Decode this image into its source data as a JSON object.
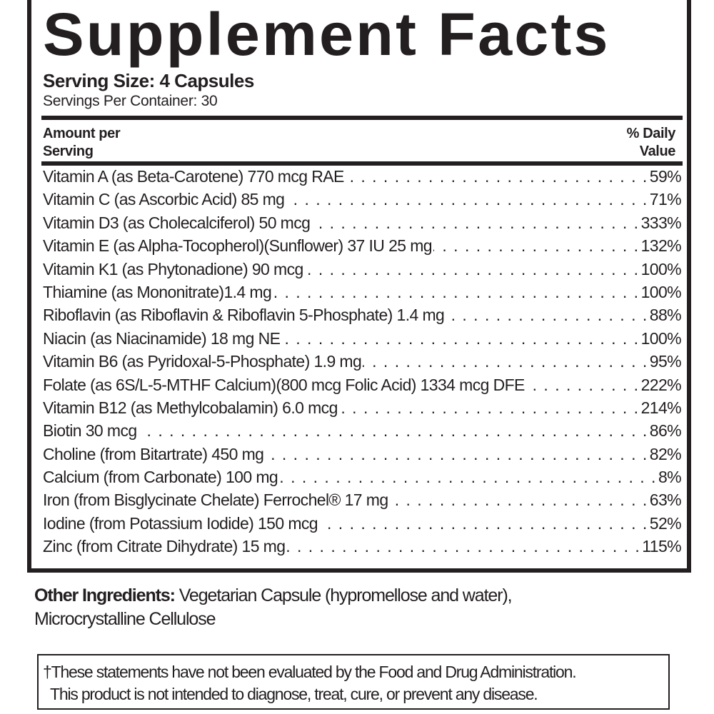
{
  "title": "Supplement Facts",
  "serving_size": "Serving Size: 4 Capsules",
  "servings_per_container": "Servings Per Container: 30",
  "header": {
    "amount_line1": "Amount per",
    "amount_line2": "Serving",
    "dv_line1": "% Daily",
    "dv_line2": "Value"
  },
  "nutrients": [
    {
      "name": "Vitamin A (as Beta-Carotene) 770 mcg RAE",
      "dv": "59%"
    },
    {
      "name": "Vitamin C (as Ascorbic Acid) 85 mg",
      "dv": "71%"
    },
    {
      "name": "Vitamin D3 (as Cholecalciferol) 50 mcg",
      "dv": "333%"
    },
    {
      "name": "Vitamin E (as Alpha-Tocopherol)(Sunflower) 37 IU 25 mg",
      "dv": "132%"
    },
    {
      "name": "Vitamin K1 (as Phytonadione) 90 mcg",
      "dv": "100%"
    },
    {
      "name": "Thiamine (as Mononitrate)1.4 mg",
      "dv": "100%"
    },
    {
      "name": "Riboflavin (as Riboflavin & Riboflavin 5-Phosphate) 1.4 mg",
      "dv": "88%"
    },
    {
      "name": "Niacin (as Niacinamide) 18 mg NE",
      "dv": "100%"
    },
    {
      "name": "Vitamin B6 (as Pyridoxal-5-Phosphate) 1.9 mg",
      "dv": "95%"
    },
    {
      "name": "Folate (as 6S/L-5-MTHF Calcium)(800 mcg Folic Acid) 1334 mcg DFE",
      "dv": "222%"
    },
    {
      "name": "Vitamin B12 (as Methylcobalamin) 6.0 mcg",
      "dv": "214%"
    },
    {
      "name": "Biotin 30 mcg",
      "dv": "86%"
    },
    {
      "name": "Choline (from Bitartrate) 450 mg",
      "dv": "82%"
    },
    {
      "name": "Calcium (from Carbonate) 100 mg",
      "dv": "8%"
    },
    {
      "name": "Iron (from Bisglycinate Chelate) Ferrochel® 17 mg",
      "dv": "63%"
    },
    {
      "name": "Iodine (from Potassium Iodide) 150 mcg",
      "dv": "52%"
    },
    {
      "name": "Zinc (from Citrate Dihydrate) 15 mg",
      "dv": "115%"
    }
  ],
  "other_ingredients": {
    "label": "Other Ingredients:",
    "line1": " Vegetarian Capsule (hypromellose and water),",
    "line2": "Microcrystalline Cellulose"
  },
  "disclaimer": {
    "line1": "†These statements have not been evaluated by the Food and Drug Administration.",
    "line2": "This product is not intended to diagnose, treat, cure, or prevent any disease."
  }
}
